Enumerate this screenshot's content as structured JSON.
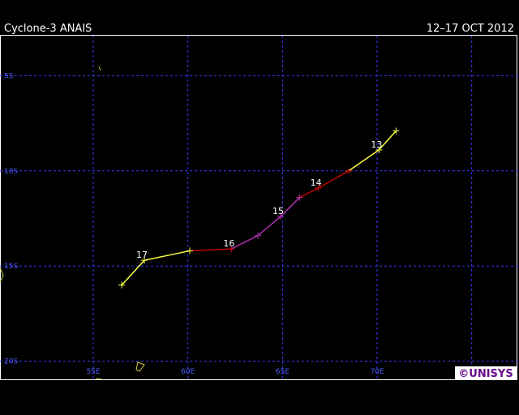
{
  "map": {
    "title": "Cyclone-3 ANAIS",
    "dates": "12–17 OCT 2012",
    "credit": "©UNISYS",
    "lonlim": [
      50.07,
      77.5
    ],
    "latlim": [
      -2.9,
      -20.95
    ],
    "lon_ticks": [
      {
        "value": 55,
        "label": "55E"
      },
      {
        "value": 60,
        "label": "60E"
      },
      {
        "value": 65,
        "label": "65E"
      },
      {
        "value": 70,
        "label": "70E"
      },
      {
        "value": 75,
        "label": null
      }
    ],
    "lat_ticks": [
      {
        "value": -5,
        "label": "5S"
      },
      {
        "value": -10,
        "label": "10S"
      },
      {
        "value": -15,
        "label": "15S"
      },
      {
        "value": -20,
        "label": "20S"
      }
    ],
    "grid_color": "#3a3aff",
    "track": [
      {
        "color": "#ffff40",
        "lon": [
          71.0,
          70.1,
          68.5
        ],
        "lat": [
          -7.9,
          -8.9,
          -10.0
        ]
      },
      {
        "color": "#c00000",
        "lon": [
          68.5,
          66.9,
          65.9
        ],
        "lat": [
          -10.0,
          -10.9,
          -11.4
        ]
      },
      {
        "color": "#b030b0",
        "lon": [
          65.9,
          64.9,
          63.7,
          62.3
        ],
        "lat": [
          -11.4,
          -12.4,
          -13.4,
          -14.1
        ]
      },
      {
        "color": "#c00000",
        "lon": [
          62.3,
          60.1
        ],
        "lat": [
          -14.1,
          -14.2
        ]
      },
      {
        "color": "#ffff40",
        "lon": [
          60.1,
          57.7,
          56.5
        ],
        "lat": [
          -14.2,
          -14.7,
          -16.0
        ]
      }
    ],
    "day_labels": [
      {
        "text": "13",
        "lon": 70.1,
        "lat": -8.9
      },
      {
        "text": "14",
        "lon": 66.9,
        "lat": -10.9
      },
      {
        "text": "15",
        "lon": 64.9,
        "lat": -12.4
      },
      {
        "text": "16",
        "lon": 62.3,
        "lat": -14.1
      },
      {
        "text": "17",
        "lon": 57.7,
        "lat": -14.7
      }
    ]
  }
}
